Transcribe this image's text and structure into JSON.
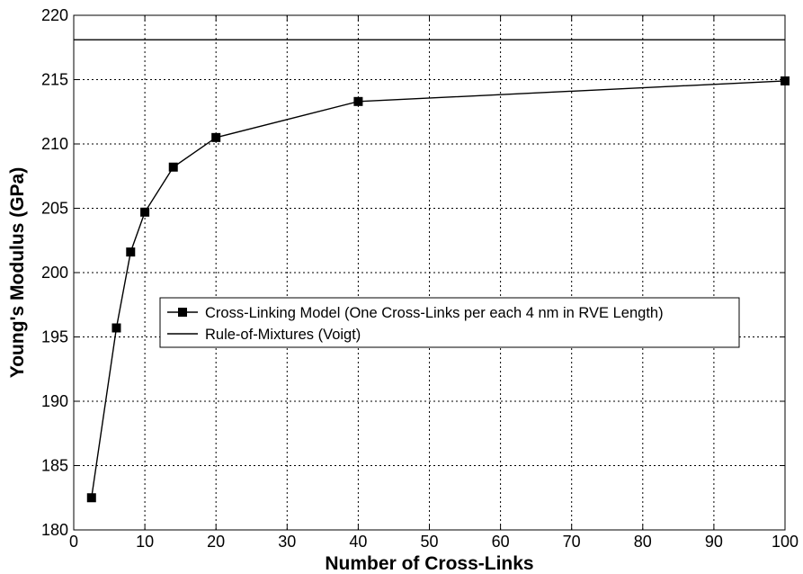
{
  "chart_data": {
    "type": "line",
    "title": "",
    "xlabel": "Number of Cross-Links",
    "ylabel": "Young's Modulus (GPa)",
    "xlim": [
      0,
      100
    ],
    "ylim": [
      180,
      220
    ],
    "x_ticks": [
      0,
      10,
      20,
      30,
      40,
      50,
      60,
      70,
      80,
      90,
      100
    ],
    "y_ticks": [
      180,
      185,
      190,
      195,
      200,
      205,
      210,
      215,
      220
    ],
    "grid": true,
    "grid_style": "dotted",
    "legend_position": "center-left",
    "series": [
      {
        "name": "Cross-Linking Model (One Cross-Links per each 4 nm in RVE Length)",
        "style": "line-with-square-markers",
        "color": "#000000",
        "x": [
          2.5,
          6,
          8,
          10,
          14,
          20,
          40,
          100
        ],
        "y": [
          182.5,
          195.7,
          201.6,
          204.7,
          208.2,
          210.5,
          213.3,
          214.9
        ]
      },
      {
        "name": "Rule-of-Mixtures (Voigt)",
        "style": "line",
        "color": "#000000",
        "x": [
          0,
          100
        ],
        "y": [
          218.1,
          218.1
        ]
      }
    ]
  }
}
